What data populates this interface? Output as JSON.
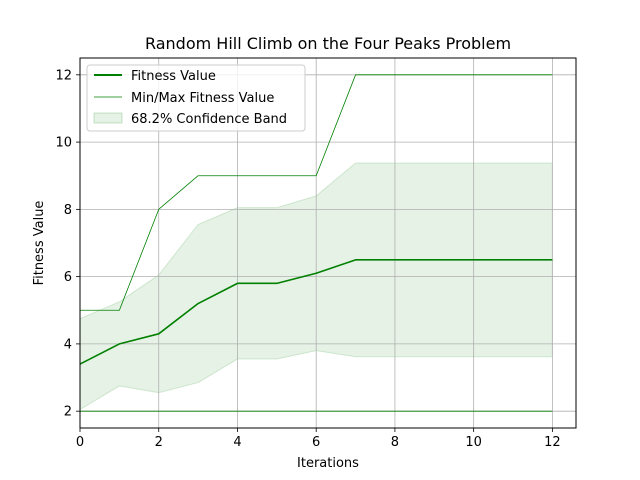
{
  "chart_data": {
    "type": "line",
    "title": "Random Hill Climb on the Four Peaks Problem",
    "xlabel": "Iterations",
    "ylabel": "Fitness Value",
    "xlim": [
      0,
      12.6
    ],
    "ylim": [
      1.5,
      12.5
    ],
    "xticks": [
      0,
      2,
      4,
      6,
      8,
      10,
      12
    ],
    "yticks": [
      2,
      4,
      6,
      8,
      10,
      12
    ],
    "grid": true,
    "legend_position": "top-left",
    "x": [
      0,
      1,
      2,
      3,
      4,
      5,
      6,
      7,
      8,
      9,
      10,
      11,
      12
    ],
    "series": [
      {
        "name": "Fitness Value",
        "values": [
          3.4,
          4.0,
          4.3,
          5.2,
          5.8,
          5.8,
          6.1,
          6.5,
          6.5,
          6.5,
          6.5,
          6.5,
          6.5
        ],
        "color": "#008000"
      },
      {
        "name": "Min/Max Fitness Value",
        "color": "#008000",
        "max_values": [
          5.0,
          5.0,
          8.0,
          9.0,
          9.0,
          9.0,
          9.0,
          12.0,
          12.0,
          12.0,
          12.0,
          12.0,
          12.0
        ],
        "min_values": [
          2.0,
          2.0,
          2.0,
          2.0,
          2.0,
          2.0,
          2.0,
          2.0,
          2.0,
          2.0,
          2.0,
          2.0,
          2.0
        ]
      },
      {
        "name": "68.2% Confidence Band",
        "color": "#008000",
        "upper": [
          4.75,
          5.25,
          6.05,
          7.55,
          8.05,
          8.05,
          8.4,
          9.38,
          9.38,
          9.38,
          9.38,
          9.38,
          9.38
        ],
        "lower": [
          2.05,
          2.75,
          2.55,
          2.85,
          3.55,
          3.55,
          3.8,
          3.62,
          3.62,
          3.62,
          3.62,
          3.62,
          3.62
        ]
      }
    ]
  }
}
